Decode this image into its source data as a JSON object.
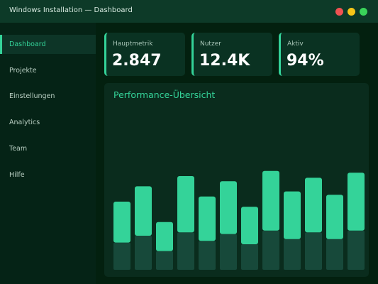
{
  "window": {
    "title": "Windows Installation — Dashboard"
  },
  "sidebar": {
    "items": [
      "Dashboard",
      "Projekte",
      "Einstellungen",
      "Analytics",
      "Team",
      "Hilfe"
    ],
    "active": 0
  },
  "cards": [
    {
      "label": "Hauptmetrik",
      "value": "2.847"
    },
    {
      "label": "Nutzer",
      "value": "12.4K"
    },
    {
      "label": "Aktiv",
      "value": "94%"
    }
  ],
  "chart_data": {
    "type": "bar",
    "title": "Performance-Übersicht",
    "ylim": [
      0,
      100
    ],
    "ranges": [
      [
        16,
        40
      ],
      [
        20,
        49
      ],
      [
        11,
        28
      ],
      [
        22,
        55
      ],
      [
        17,
        43
      ],
      [
        21,
        52
      ],
      [
        15,
        37
      ],
      [
        23,
        58
      ],
      [
        18,
        46
      ],
      [
        22,
        54
      ],
      [
        18,
        44
      ],
      [
        23,
        57
      ]
    ],
    "color": "#34d399",
    "base_color": "#17493a"
  }
}
